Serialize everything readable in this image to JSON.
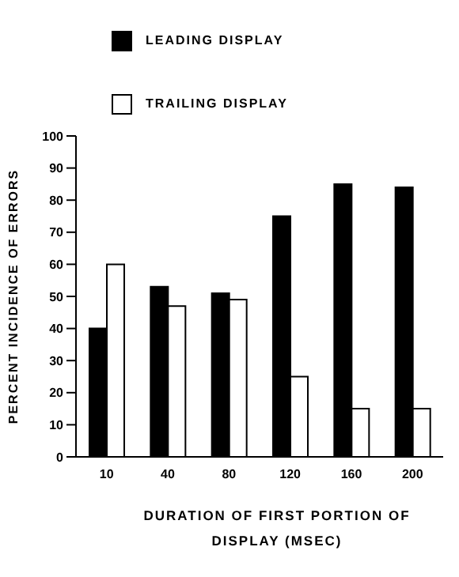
{
  "chart_data": {
    "type": "bar",
    "xlabel": "DURATION OF FIRST PORTION OF DISPLAY (MSEC)",
    "ylabel": "PERCENT INCIDENCE OF ERRORS",
    "categories": [
      "10",
      "40",
      "80",
      "120",
      "160",
      "200"
    ],
    "series": [
      {
        "name": "LEADING DISPLAY",
        "color": "#000000",
        "values": [
          40,
          53,
          51,
          75,
          85,
          84
        ]
      },
      {
        "name": "TRAILING DISPLAY",
        "color": "#ffffff",
        "values": [
          60,
          47,
          49,
          25,
          15,
          15
        ]
      }
    ],
    "ylim": [
      0,
      100
    ],
    "yticks": [
      0,
      10,
      20,
      30,
      40,
      50,
      60,
      70,
      80,
      90,
      100
    ],
    "grid": false,
    "legend": "top"
  }
}
